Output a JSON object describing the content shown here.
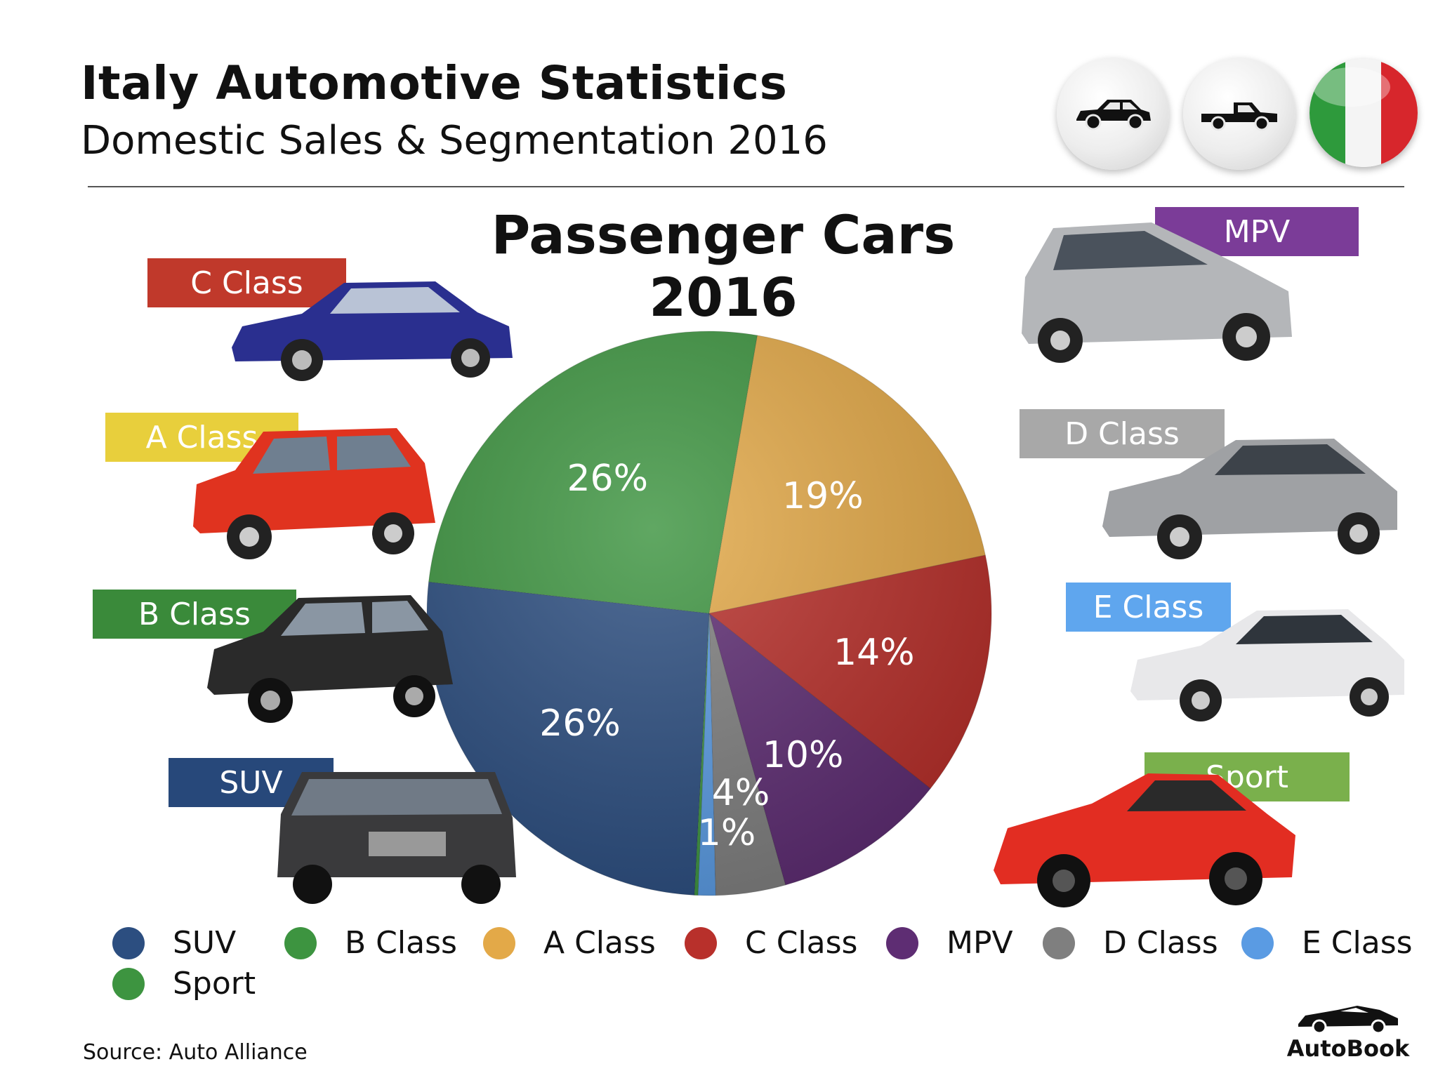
{
  "header": {
    "title": "Italy Automotive Statistics",
    "subtitle": "Domestic Sales & Segmentation 2016"
  },
  "icons": [
    "sedan-car-icon",
    "pickup-truck-icon",
    "italy-flag-icon"
  ],
  "segment_labels": {
    "c_class": "C Class",
    "a_class": "A Class",
    "b_class": "B Class",
    "suv": "SUV",
    "mpv": "MPV",
    "d_class": "D Class",
    "e_class": "E Class",
    "sport": "Sport"
  },
  "chart_data": {
    "type": "pie",
    "title": "Passenger Cars 2016",
    "slices": [
      {
        "label": "SUV",
        "value": 26,
        "display": "26%",
        "color": "#2c4e80"
      },
      {
        "label": "B Class",
        "value": 26,
        "display": "26%",
        "color": "#3d9440"
      },
      {
        "label": "A Class",
        "value": 19,
        "display": "19%",
        "color": "#e3a948"
      },
      {
        "label": "C Class",
        "value": 14,
        "display": "14%",
        "color": "#b8302b"
      },
      {
        "label": "MPV",
        "value": 10,
        "display": "10%",
        "color": "#5e2d73"
      },
      {
        "label": "D Class",
        "value": 4,
        "display": "4%",
        "color": "#7f7f7f"
      },
      {
        "label": "E Class",
        "value": 1,
        "display": "1%",
        "color": "#5a9be3"
      },
      {
        "label": "Sport",
        "value": 0.2,
        "display": "",
        "color": "#3d9440"
      }
    ],
    "legend": [
      "SUV",
      "B Class",
      "A Class",
      "C Class",
      "MPV",
      "D Class",
      "E Class",
      "Sport"
    ],
    "legend_position": "bottom"
  },
  "colors": {
    "suv": "#2c4e80",
    "b_class": "#3d9440",
    "a_class": "#e3a948",
    "c_class": "#b8302b",
    "mpv": "#5e2d73",
    "d_class": "#7f7f7f",
    "e_class": "#5a9be3",
    "sport": "#3d9440",
    "a_label": "#e8cf3c",
    "c_label": "#c0392b",
    "b_label": "#3a8a3a",
    "suv_label": "#27487a",
    "mpv_label": "#7b3c98",
    "d_label": "#a8a8a8",
    "e_label": "#5fa6ee",
    "sport_label": "#7ab04c"
  },
  "footer": {
    "source": "Source:  Auto Alliance",
    "brand": "AutoBook"
  }
}
